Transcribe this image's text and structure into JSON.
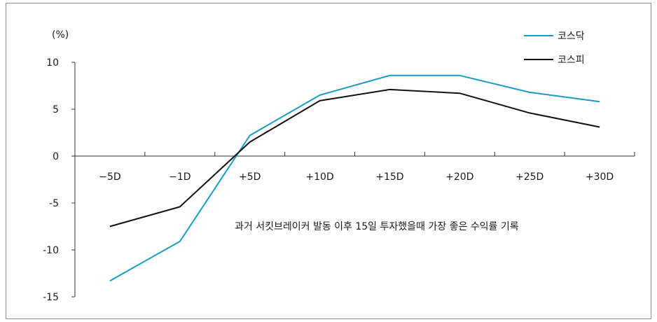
{
  "chart_data": {
    "type": "line",
    "unit_label": "(%)",
    "categories": [
      "−5D",
      "−1D",
      "+5D",
      "+10D",
      "+15D",
      "+20D",
      "+25D",
      "+30D"
    ],
    "series": [
      {
        "name": "코스닥",
        "color": "#1a9bc4",
        "values": [
          -13.3,
          -9.1,
          2.2,
          6.5,
          8.6,
          8.6,
          6.8,
          5.8
        ]
      },
      {
        "name": "코스피",
        "color": "#111111",
        "values": [
          -7.5,
          -5.4,
          1.5,
          5.9,
          7.1,
          6.7,
          4.6,
          3.1
        ]
      }
    ],
    "zero_crossing": 0,
    "ylim": [
      -15,
      10
    ],
    "yticks": [
      10,
      5,
      0,
      -5,
      -10,
      -15
    ],
    "ytick_labels": [
      "10",
      "5",
      "0",
      "-5",
      "-10",
      "-15"
    ],
    "annotation": "과거 서킷브레이커 발동 이후 15일 투자했을때 가장 좋은 수익률 기록",
    "legend_position": "top-right",
    "grid": false
  }
}
